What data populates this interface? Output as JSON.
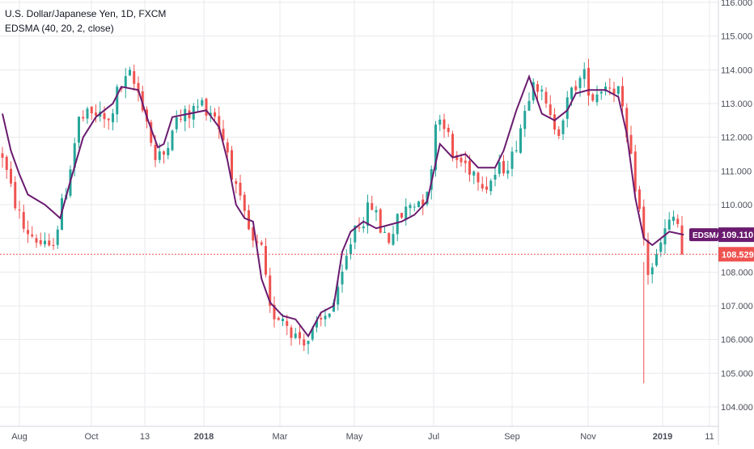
{
  "header": {
    "symbol_line": "U.S. Dollar/Japanese Yen, 1D, FXCM",
    "indicator_line": "EDSMA (40, 20, 2, close)"
  },
  "colors": {
    "up": "#26a69a",
    "down": "#ef5350",
    "edsma": "#6a1b6f",
    "grid": "#e8eaed",
    "axis_text": "#4a4e59",
    "last_price": "#ef5350"
  },
  "chart_data": {
    "type": "candlestick",
    "symbol": "U.S. Dollar/Japanese Yen",
    "interval": "1D",
    "source": "FXCM",
    "ylim": [
      103.4,
      116.2
    ],
    "y_ticks": [
      "104.000",
      "105.000",
      "106.000",
      "107.000",
      "108.000",
      "109.000",
      "110.000",
      "111.000",
      "112.000",
      "113.000",
      "114.000",
      "115.000",
      "116.000"
    ],
    "x_ticks": [
      {
        "label": "Aug",
        "bold": false
      },
      {
        "label": "Oct",
        "bold": false
      },
      {
        "label": "13",
        "bold": false
      },
      {
        "label": "2018",
        "bold": true
      },
      {
        "label": "Mar",
        "bold": false
      },
      {
        "label": "May",
        "bold": false
      },
      {
        "label": "Jul",
        "bold": false
      },
      {
        "label": "Sep",
        "bold": false
      },
      {
        "label": "Nov",
        "bold": false
      },
      {
        "label": "2019",
        "bold": true
      },
      {
        "label": "11",
        "bold": false
      }
    ],
    "price_path": [
      [
        0,
        111.5
      ],
      [
        0.8,
        110.6
      ],
      [
        2.5,
        109.3
      ],
      [
        3.5,
        109.1
      ],
      [
        5.5,
        108.6
      ],
      [
        6.5,
        109.4
      ],
      [
        7.5,
        110.5
      ],
      [
        9,
        112.5
      ],
      [
        11,
        112.7
      ],
      [
        12.5,
        112.4
      ],
      [
        13.5,
        113.3
      ],
      [
        15,
        113.8
      ],
      [
        16.3,
        113.2
      ],
      [
        17,
        112.5
      ],
      [
        18,
        111.3
      ],
      [
        19,
        111.5
      ],
      [
        20,
        112.4
      ],
      [
        22,
        112.7
      ],
      [
        23.5,
        113.0
      ],
      [
        25,
        112.7
      ],
      [
        26.5,
        111.6
      ],
      [
        27.5,
        110.4
      ],
      [
        28.5,
        109.6
      ],
      [
        29.5,
        108.8
      ],
      [
        30.5,
        108.6
      ],
      [
        31.5,
        106.8
      ],
      [
        33,
        106.7
      ],
      [
        34.5,
        106.1
      ],
      [
        36,
        106.0
      ],
      [
        37.5,
        106.5
      ],
      [
        38.5,
        106.9
      ],
      [
        39.5,
        107.3
      ],
      [
        40.5,
        108.4
      ],
      [
        41.5,
        109.4
      ],
      [
        42.5,
        109.6
      ],
      [
        43.5,
        110.0
      ],
      [
        44.5,
        109.3
      ],
      [
        45.5,
        109.0
      ],
      [
        46.5,
        109.5
      ],
      [
        48,
        110.0
      ],
      [
        49.5,
        110.2
      ],
      [
        50.5,
        110.9
      ],
      [
        51,
        112.6
      ],
      [
        52,
        112.5
      ],
      [
        53,
        111.4
      ],
      [
        54.5,
        111.2
      ],
      [
        56,
        110.9
      ],
      [
        57,
        110.6
      ],
      [
        58,
        110.9
      ],
      [
        60,
        111.4
      ],
      [
        61.5,
        112.8
      ],
      [
        62.5,
        113.9
      ],
      [
        63.5,
        113.2
      ],
      [
        64.5,
        112.5
      ],
      [
        65.5,
        112.3
      ],
      [
        66.5,
        113.0
      ],
      [
        67.5,
        113.6
      ],
      [
        68.5,
        113.8
      ],
      [
        69.5,
        113.2
      ],
      [
        70.5,
        113.5
      ],
      [
        71.5,
        113.6
      ],
      [
        72.5,
        113.4
      ],
      [
        73.5,
        111.9
      ],
      [
        74.5,
        110.6
      ],
      [
        75.3,
        109.3
      ],
      [
        76,
        108.0
      ],
      [
        77,
        108.4
      ],
      [
        78,
        109.2
      ],
      [
        79,
        109.6
      ],
      [
        79.8,
        109.3
      ],
      [
        80.2,
        108.53
      ]
    ],
    "edsma_path": [
      [
        0,
        112.7
      ],
      [
        1,
        111.6
      ],
      [
        2,
        110.9
      ],
      [
        3,
        110.3
      ],
      [
        5,
        110.0
      ],
      [
        6.8,
        109.6
      ],
      [
        8,
        110.7
      ],
      [
        9.5,
        112.0
      ],
      [
        11,
        112.6
      ],
      [
        13,
        113.0
      ],
      [
        14,
        113.5
      ],
      [
        16,
        113.4
      ],
      [
        17,
        112.6
      ],
      [
        18.3,
        111.7
      ],
      [
        19,
        111.8
      ],
      [
        20,
        112.6
      ],
      [
        22,
        112.7
      ],
      [
        24,
        112.8
      ],
      [
        25.5,
        112.3
      ],
      [
        26.5,
        111.3
      ],
      [
        27.5,
        110.0
      ],
      [
        28.5,
        109.6
      ],
      [
        29.5,
        109.5
      ],
      [
        30.5,
        107.8
      ],
      [
        31.5,
        107.1
      ],
      [
        33,
        106.7
      ],
      [
        34.5,
        106.6
      ],
      [
        36,
        106.1
      ],
      [
        37.5,
        106.8
      ],
      [
        39,
        107.0
      ],
      [
        40,
        108.6
      ],
      [
        41,
        109.2
      ],
      [
        42.5,
        109.5
      ],
      [
        44,
        109.3
      ],
      [
        45.5,
        109.4
      ],
      [
        47,
        109.5
      ],
      [
        48.5,
        109.7
      ],
      [
        50,
        110.1
      ],
      [
        51.5,
        111.8
      ],
      [
        53,
        111.4
      ],
      [
        54.5,
        111.5
      ],
      [
        56,
        111.1
      ],
      [
        58,
        111.1
      ],
      [
        59,
        111.6
      ],
      [
        60.5,
        112.8
      ],
      [
        62,
        113.8
      ],
      [
        63.5,
        112.7
      ],
      [
        65,
        112.5
      ],
      [
        66.5,
        112.8
      ],
      [
        67.5,
        113.3
      ],
      [
        69,
        113.4
      ],
      [
        71,
        113.4
      ],
      [
        72.5,
        113.2
      ],
      [
        73.5,
        112.1
      ],
      [
        74.5,
        110.2
      ],
      [
        75.5,
        109.0
      ],
      [
        76.5,
        108.8
      ],
      [
        77.5,
        109.0
      ],
      [
        78.5,
        109.2
      ],
      [
        80.2,
        109.11
      ]
    ],
    "series": [
      {
        "name": "USDJPY",
        "kind": "candles"
      },
      {
        "name": "EDSMA",
        "kind": "line",
        "last_value": "109.110"
      }
    ],
    "edsma_label": "EDSMA",
    "edsma_value": "109.110",
    "last_price": "108.529"
  }
}
